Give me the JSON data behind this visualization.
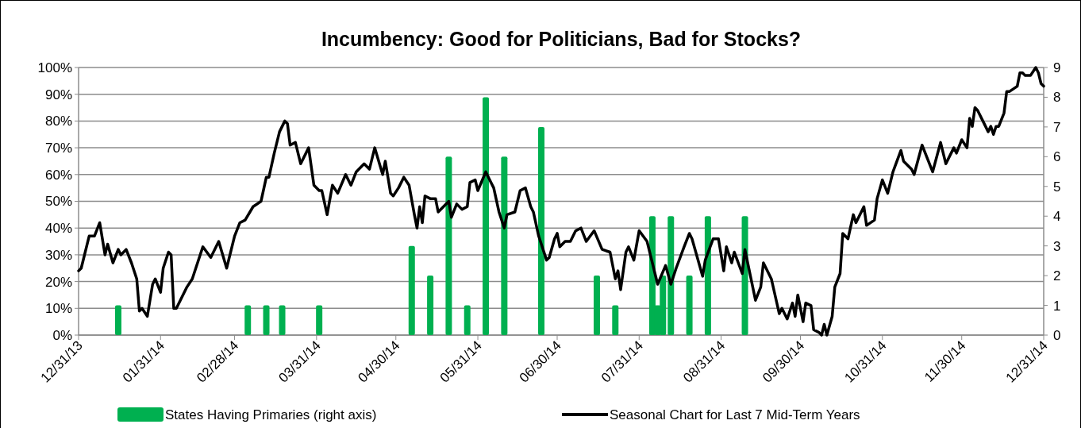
{
  "chart_data": {
    "type": "line",
    "title": "Incumbency: Good for Politicians, Bad for Stocks?",
    "xlim": [
      "2013-12-31",
      "2014-12-31"
    ],
    "xticks": [
      {
        "value": "2013-12-31",
        "label": "12/31/13"
      },
      {
        "value": "2014-01-31",
        "label": "01/31/14"
      },
      {
        "value": "2014-02-28",
        "label": "02/28/14"
      },
      {
        "value": "2014-03-31",
        "label": "03/31/14"
      },
      {
        "value": "2014-04-30",
        "label": "04/30/14"
      },
      {
        "value": "2014-05-31",
        "label": "05/31/14"
      },
      {
        "value": "2014-06-30",
        "label": "06/30/14"
      },
      {
        "value": "2014-07-31",
        "label": "07/31/14"
      },
      {
        "value": "2014-08-31",
        "label": "08/31/14"
      },
      {
        "value": "2014-09-30",
        "label": "09/30/14"
      },
      {
        "value": "2014-10-31",
        "label": "10/31/14"
      },
      {
        "value": "2014-11-30",
        "label": "11/30/14"
      },
      {
        "value": "2014-12-31",
        "label": "12/31/14"
      }
    ],
    "ylim": [
      0,
      100
    ],
    "yticks": [
      {
        "value": 0,
        "label": "0%"
      },
      {
        "value": 10,
        "label": "10%"
      },
      {
        "value": 20,
        "label": "20%"
      },
      {
        "value": 30,
        "label": "30%"
      },
      {
        "value": 40,
        "label": "40%"
      },
      {
        "value": 50,
        "label": "50%"
      },
      {
        "value": 60,
        "label": "60%"
      },
      {
        "value": 70,
        "label": "70%"
      },
      {
        "value": 80,
        "label": "80%"
      },
      {
        "value": 90,
        "label": "90%"
      },
      {
        "value": 100,
        "label": "100%"
      }
    ],
    "y2lim": [
      0,
      9
    ],
    "y2ticks": [
      0,
      1,
      2,
      3,
      4,
      5,
      6,
      7,
      8,
      9
    ],
    "grid": "y",
    "legend": "bottom",
    "series": [
      {
        "name": "States Having Primaries (right axis)",
        "type": "bar",
        "axis": "y2",
        "color": "#00b050",
        "x": [
          "2014-01-15",
          "2014-03-05",
          "2014-03-12",
          "2014-03-18",
          "2014-04-01",
          "2014-05-06",
          "2014-05-13",
          "2014-05-20",
          "2014-05-27",
          "2014-06-03",
          "2014-06-10",
          "2014-06-24",
          "2014-07-15",
          "2014-07-22",
          "2014-08-05",
          "2014-08-07",
          "2014-08-09",
          "2014-08-12",
          "2014-08-19",
          "2014-08-26",
          "2014-09-09"
        ],
        "values": [
          1,
          1,
          1,
          1,
          1,
          3,
          2,
          6,
          1,
          8,
          6,
          7,
          2,
          1,
          4,
          1,
          2,
          4,
          2,
          4,
          4
        ]
      },
      {
        "name": "Seasonal Chart for Last 7 Mid-Term Years",
        "color": "#000000",
        "x": [
          "2013-12-31",
          "2014-01-01",
          "2014-01-04",
          "2014-01-06",
          "2014-01-08",
          "2014-01-10",
          "2014-01-11",
          "2014-01-13",
          "2014-01-15",
          "2014-01-16",
          "2014-01-18",
          "2014-01-20",
          "2014-01-22",
          "2014-01-23",
          "2014-01-24",
          "2014-01-26",
          "2014-01-28",
          "2014-01-29",
          "2014-01-31",
          "2014-02-01",
          "2014-02-03",
          "2014-02-04",
          "2014-02-05",
          "2014-02-06",
          "2014-02-08",
          "2014-02-10",
          "2014-02-12",
          "2014-02-16",
          "2014-02-19",
          "2014-02-22",
          "2014-02-25",
          "2014-02-28",
          "2014-03-02",
          "2014-03-04",
          "2014-03-07",
          "2014-03-10",
          "2014-03-12",
          "2014-03-13",
          "2014-03-15",
          "2014-03-17",
          "2014-03-19",
          "2014-03-20",
          "2014-03-21",
          "2014-03-23",
          "2014-03-25",
          "2014-03-28",
          "2014-03-29",
          "2014-03-30",
          "2014-04-01",
          "2014-04-02",
          "2014-04-04",
          "2014-04-06",
          "2014-04-08",
          "2014-04-11",
          "2014-04-13",
          "2014-04-15",
          "2014-04-18",
          "2014-04-20",
          "2014-04-22",
          "2014-04-25",
          "2014-04-26",
          "2014-04-28",
          "2014-04-29",
          "2014-05-01",
          "2014-05-03",
          "2014-05-05",
          "2014-05-07",
          "2014-05-08",
          "2014-05-09",
          "2014-05-10",
          "2014-05-11",
          "2014-05-13",
          "2014-05-15",
          "2014-05-16",
          "2014-05-18",
          "2014-05-20",
          "2014-05-21",
          "2014-05-23",
          "2014-05-25",
          "2014-05-27",
          "2014-05-28",
          "2014-05-30",
          "2014-05-31",
          "2014-06-03",
          "2014-06-05",
          "2014-06-06",
          "2014-06-08",
          "2014-06-10",
          "2014-06-11",
          "2014-06-14",
          "2014-06-16",
          "2014-06-18",
          "2014-06-20",
          "2014-06-21",
          "2014-06-23",
          "2014-06-26",
          "2014-06-27",
          "2014-06-29",
          "2014-06-30",
          "2014-07-01",
          "2014-07-03",
          "2014-07-05",
          "2014-07-07",
          "2014-07-09",
          "2014-07-11",
          "2014-07-14",
          "2014-07-17",
          "2014-07-20",
          "2014-07-22",
          "2014-07-23",
          "2014-07-24",
          "2014-07-26",
          "2014-07-27",
          "2014-07-29",
          "2014-07-31",
          "2014-08-03",
          "2014-08-07",
          "2014-08-10",
          "2014-08-12",
          "2014-08-14",
          "2014-08-17",
          "2014-08-19",
          "2014-08-20",
          "2014-08-22",
          "2014-08-24",
          "2014-08-25",
          "2014-08-28",
          "2014-08-30",
          "2014-09-01",
          "2014-09-02",
          "2014-09-04",
          "2014-09-05",
          "2014-09-08",
          "2014-09-09",
          "2014-09-13",
          "2014-09-15",
          "2014-09-16",
          "2014-09-19",
          "2014-09-22",
          "2014-09-23",
          "2014-09-25",
          "2014-09-27",
          "2014-09-28",
          "2014-09-29",
          "2014-10-01",
          "2014-10-02",
          "2014-10-04",
          "2014-10-05",
          "2014-10-07",
          "2014-10-08",
          "2014-10-09",
          "2014-10-10",
          "2014-10-12",
          "2014-10-13",
          "2014-10-15",
          "2014-10-16",
          "2014-10-18",
          "2014-10-20",
          "2014-10-21",
          "2014-10-24",
          "2014-10-25",
          "2014-10-28",
          "2014-10-29",
          "2014-10-31",
          "2014-11-02",
          "2014-11-04",
          "2014-11-07",
          "2014-11-08",
          "2014-11-11",
          "2014-11-12",
          "2014-11-15",
          "2014-11-19",
          "2014-11-22",
          "2014-11-24",
          "2014-11-27",
          "2014-11-28",
          "2014-11-30",
          "2014-12-02",
          "2014-12-03",
          "2014-12-04",
          "2014-12-05",
          "2014-12-06",
          "2014-12-08",
          "2014-12-10",
          "2014-12-11",
          "2014-12-12",
          "2014-12-13",
          "2014-12-14",
          "2014-12-16",
          "2014-12-17",
          "2014-12-18",
          "2014-12-21",
          "2014-12-22",
          "2014-12-23",
          "2014-12-24",
          "2014-12-26",
          "2014-12-28",
          "2014-12-29",
          "2014-12-30",
          "2014-12-31"
        ],
        "values": [
          24,
          25,
          37,
          37,
          42,
          30,
          34,
          27,
          32,
          30,
          32,
          27,
          21,
          9,
          10,
          7,
          19,
          21,
          16,
          25,
          31,
          30,
          10,
          10,
          14,
          18,
          21,
          33,
          29,
          35,
          25,
          37,
          42,
          43,
          48,
          50,
          59,
          59,
          68,
          76,
          80,
          79,
          71,
          72,
          64,
          70,
          63,
          56,
          54,
          54,
          45,
          56,
          53,
          60,
          56,
          61,
          64,
          62,
          70,
          60,
          65,
          53,
          52,
          55,
          59,
          56,
          45,
          40,
          48,
          42,
          52,
          51,
          51,
          46,
          48,
          50,
          44,
          49,
          47,
          48,
          57,
          58,
          54,
          61,
          57,
          55,
          46,
          40,
          45,
          46,
          54,
          55,
          48,
          46,
          37,
          28,
          29,
          36,
          38,
          33,
          35,
          35,
          39,
          40,
          35,
          39,
          32,
          31,
          21,
          24,
          17,
          31,
          33,
          28,
          39,
          35,
          19,
          26,
          19,
          25,
          33,
          38,
          36,
          29,
          22,
          28,
          36,
          36,
          24,
          33,
          27,
          31,
          23,
          32,
          13,
          18,
          27,
          21,
          8,
          10,
          6,
          12,
          7,
          15,
          5,
          12,
          11,
          2,
          1,
          0,
          4,
          0,
          7,
          18,
          23,
          38,
          36,
          45,
          42,
          48,
          41,
          43,
          51,
          58,
          53,
          61,
          69,
          65,
          62,
          60,
          71,
          61,
          72,
          64,
          70,
          68,
          73,
          70,
          81,
          78,
          85,
          84,
          80,
          76,
          78,
          75,
          78,
          78,
          83,
          91,
          91,
          93,
          98,
          98,
          97,
          97,
          100,
          98,
          94,
          93
        ]
      }
    ]
  }
}
